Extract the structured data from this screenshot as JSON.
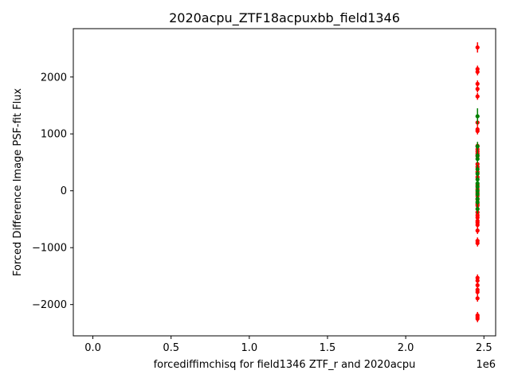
{
  "chart_data": {
    "type": "scatter",
    "title": "2020acpu_ZTF18acpuxbb_field1346",
    "xlabel": "forcediffimchisq for field1346 ZTF_r and 2020acpu",
    "ylabel": "Forced Difference Image PSF-fit Flux",
    "x_offset_label": "1e6",
    "xlim": [
      -125000,
      2575000
    ],
    "ylim": [
      -2550,
      2850
    ],
    "x_ticks": [
      0,
      500000,
      1000000,
      1500000,
      2000000,
      2500000
    ],
    "x_tick_labels": [
      "0.0",
      "0.5",
      "1.0",
      "1.5",
      "2.0",
      "2.5"
    ],
    "y_ticks": [
      -2000,
      -1000,
      0,
      1000,
      2000
    ],
    "y_tick_labels": [
      "−2000",
      "−1000",
      "0",
      "1000",
      "2000"
    ],
    "grid": false,
    "legend": "none",
    "series": [
      {
        "color": "#ff0000",
        "x": 2459000,
        "y": [
          2520,
          2140,
          2090,
          1880,
          1790,
          1660,
          1200,
          1080,
          1050,
          790,
          730,
          690,
          650,
          610,
          470,
          420,
          330,
          240,
          100,
          30,
          -30,
          -90,
          -150,
          -230,
          -260,
          -380,
          -430,
          -470,
          -530,
          -560,
          -600,
          -700,
          -880,
          -920,
          -1530,
          -1580,
          -1660,
          -1740,
          -1780,
          -1890,
          -2190,
          -2220,
          -2250
        ],
        "yerr": [
          90,
          60,
          60,
          60,
          60,
          60,
          60,
          60,
          60,
          60,
          60,
          60,
          60,
          60,
          60,
          60,
          60,
          60,
          60,
          60,
          60,
          60,
          60,
          60,
          60,
          60,
          60,
          60,
          60,
          60,
          60,
          60,
          60,
          60,
          60,
          60,
          60,
          60,
          60,
          60,
          60,
          60,
          60
        ]
      },
      {
        "color": "#008000",
        "x": 2459000,
        "y": [
          1310,
          780,
          620,
          560,
          380,
          300,
          200,
          130,
          70,
          0,
          -60,
          -140,
          -200,
          -320
        ],
        "yerr": [
          140,
          80,
          80,
          80,
          80,
          80,
          80,
          80,
          80,
          80,
          80,
          80,
          80,
          80
        ]
      }
    ]
  }
}
